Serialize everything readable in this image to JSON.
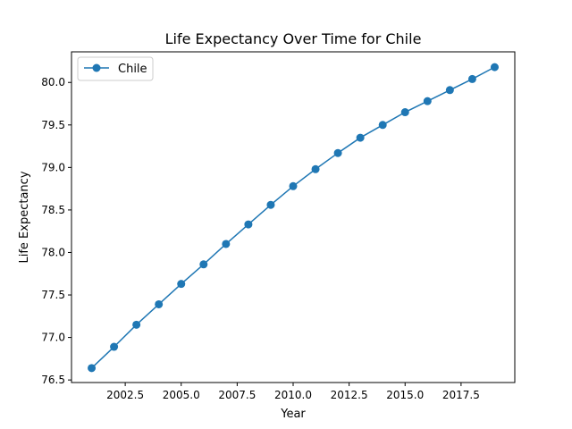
{
  "chart_data": {
    "type": "line",
    "title": "Life Expectancy Over Time for Chile",
    "xlabel": "Year",
    "ylabel": "Life Expectancy",
    "xlim": [
      2000.1,
      2019.9
    ],
    "ylim": [
      76.47,
      80.36
    ],
    "xticks": [
      2002.5,
      2005.0,
      2007.5,
      2010.0,
      2012.5,
      2015.0,
      2017.5
    ],
    "xtick_labels": [
      "2002.5",
      "2005.0",
      "2007.5",
      "2010.0",
      "2012.5",
      "2015.0",
      "2017.5"
    ],
    "yticks": [
      76.5,
      77.0,
      77.5,
      78.0,
      78.5,
      79.0,
      79.5,
      80.0
    ],
    "ytick_labels": [
      "76.5",
      "77.0",
      "77.5",
      "78.0",
      "78.5",
      "79.0",
      "79.5",
      "80.0"
    ],
    "grid": false,
    "legend_position": "upper-left",
    "series": [
      {
        "name": "Chile",
        "color": "#1f77b4",
        "marker": "circle",
        "x": [
          2001,
          2002,
          2003,
          2004,
          2005,
          2006,
          2007,
          2008,
          2009,
          2010,
          2011,
          2012,
          2013,
          2014,
          2015,
          2016,
          2017,
          2018,
          2019
        ],
        "y": [
          76.64,
          76.89,
          77.15,
          77.39,
          77.63,
          77.86,
          78.1,
          78.33,
          78.56,
          78.78,
          78.98,
          79.17,
          79.35,
          79.5,
          79.65,
          79.78,
          79.91,
          80.04,
          80.18
        ]
      }
    ]
  }
}
